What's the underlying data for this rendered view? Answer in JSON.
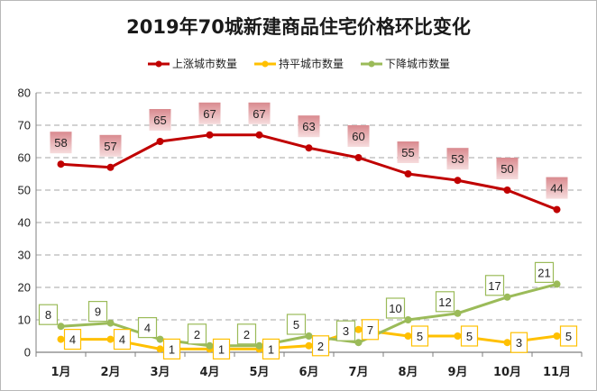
{
  "chart_data": {
    "type": "line",
    "title": "2019年70城新建商品住宅价格环比变化",
    "categories": [
      "1月",
      "2月",
      "3月",
      "4月",
      "5月",
      "6月",
      "7月",
      "8月",
      "9月",
      "10月",
      "11月"
    ],
    "ylim": [
      0,
      80
    ],
    "yticks": [
      0,
      10,
      20,
      30,
      40,
      50,
      60,
      70,
      80
    ],
    "grid": true,
    "legend_position": "top",
    "series": [
      {
        "name": "上涨城市数量",
        "color": "#c00000",
        "label_style": "box-pink",
        "values": [
          58,
          57,
          65,
          67,
          67,
          63,
          60,
          55,
          53,
          50,
          44
        ]
      },
      {
        "name": "持平城市数量",
        "color": "#ffc000",
        "label_style": "box-yellow",
        "values": [
          4,
          4,
          1,
          1,
          1,
          2,
          7,
          5,
          5,
          3,
          5
        ]
      },
      {
        "name": "下降城市数量",
        "color": "#9bbb59",
        "label_style": "box-green",
        "values": [
          8,
          9,
          4,
          2,
          2,
          5,
          3,
          10,
          12,
          17,
          21
        ]
      }
    ]
  }
}
